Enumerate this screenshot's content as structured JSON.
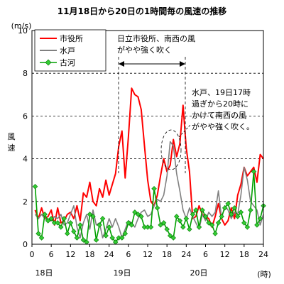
{
  "chart_data": {
    "type": "line",
    "title": "11月18日から20日の1時間毎の風速の推移",
    "ylabel_unit": "(m/s)",
    "ylabel": [
      "風",
      "速"
    ],
    "xlabel_unit": "(時)",
    "ylim": [
      0,
      10
    ],
    "yticks": [
      0,
      2,
      4,
      6,
      8,
      10
    ],
    "x_tick_labels": [
      "0",
      "6",
      "12",
      "18",
      "24",
      "6",
      "12",
      "18",
      "24",
      "6",
      "12",
      "18",
      "24"
    ],
    "day_labels": [
      "18日",
      "19日",
      "20日"
    ],
    "legend_position": "top-left",
    "grid": "dashed horizontal",
    "x_hours": [
      1,
      2,
      3,
      4,
      5,
      6,
      7,
      8,
      9,
      10,
      11,
      12,
      13,
      14,
      15,
      16,
      17,
      18,
      19,
      20,
      21,
      22,
      23,
      24,
      25,
      26,
      27,
      28,
      29,
      30,
      31,
      32,
      33,
      34,
      35,
      36,
      37,
      38,
      39,
      40,
      41,
      42,
      43,
      44,
      45,
      46,
      47,
      48,
      49,
      50,
      51,
      52,
      53,
      54,
      55,
      56,
      57,
      58,
      59,
      60,
      61,
      62,
      63,
      64,
      65,
      66,
      67,
      68,
      69,
      70,
      71,
      72
    ],
    "series": [
      {
        "name": "市役所",
        "color": "#ff0000",
        "marker": "none",
        "values": [
          1.6,
          1.2,
          1.7,
          1.2,
          1.3,
          1.6,
          0.9,
          1.7,
          1.0,
          1.1,
          1.4,
          1.5,
          1.2,
          1.8,
          1.1,
          2.4,
          2.2,
          2.9,
          2.0,
          1.8,
          2.6,
          2.2,
          3.0,
          2.3,
          2.8,
          3.3,
          4.6,
          5.3,
          3.1,
          5.0,
          7.3,
          7.0,
          6.9,
          6.3,
          4.6,
          3.0,
          2.0,
          1.8,
          2.3,
          3.2,
          4.0,
          3.4,
          3.7,
          4.9,
          4.1,
          4.7,
          6.5,
          4.5,
          3.4,
          1.2,
          1.3,
          1.8,
          1.4,
          1.3,
          1.2,
          0.8,
          1.3,
          1.9,
          1.2,
          0.9,
          1.1,
          1.7,
          1.2,
          2.3,
          2.8,
          3.6,
          3.2,
          3.4,
          3.6,
          2.9,
          4.2,
          4.0
        ]
      },
      {
        "name": "水戸",
        "color": "#808080",
        "marker": "none",
        "values": [
          1.4,
          1.2,
          1.4,
          1.2,
          1.1,
          1.1,
          1.3,
          1.2,
          1.4,
          0.9,
          1.0,
          1.4,
          1.8,
          0.8,
          0.3,
          1.0,
          1.4,
          0.7,
          1.6,
          0.9,
          1.0,
          0.3,
          0.7,
          1.2,
          0.8,
          1.2,
          0.8,
          0.3,
          0.7,
          1.1,
          1.0,
          0.8,
          1.2,
          1.5,
          1.6,
          1.3,
          1.4,
          1.8,
          2.1,
          2.0,
          2.3,
          3.2,
          4.8,
          4.6,
          3.3,
          2.5,
          1.6,
          1.2,
          1.7,
          1.3,
          1.0,
          0.7,
          1.4,
          1.1,
          1.5,
          1.3,
          1.5,
          2.5,
          1.2,
          1.8,
          1.6,
          1.2,
          1.5,
          1.4,
          2.3,
          3.6,
          3.0,
          2.0,
          1.8,
          1.6,
          0.9,
          1.4
        ]
      },
      {
        "name": "古河",
        "color": "#00a000",
        "marker": "diamond",
        "values": [
          2.7,
          0.5,
          0.3,
          1.4,
          1.1,
          1.2,
          1.0,
          1.0,
          0.8,
          1.2,
          0.5,
          1.0,
          0.6,
          0.3,
          0.9,
          0.2,
          0.1,
          1.4,
          1.3,
          0.2,
          0.9,
          1.2,
          0.4,
          0.8,
          0.3,
          0.1,
          0.3,
          0.3,
          0.5,
          1.0,
          0.9,
          1.5,
          1.4,
          1.3,
          0.8,
          0.8,
          0.8,
          2.6,
          1.7,
          0.9,
          1.0,
          0.7,
          0.4,
          0.3,
          1.3,
          1.1,
          0.8,
          1.2,
          0.7,
          1.4,
          1.6,
          0.8,
          1.6,
          1.3,
          1.0,
          0.9,
          0.5,
          1.0,
          1.3,
          1.7,
          1.9,
          1.4,
          1.7,
          1.3,
          1.5,
          1.0,
          0.8,
          1.6,
          3.4,
          0.9,
          1.2,
          1.8
        ]
      }
    ],
    "annotations": {
      "arrow_text": [
        "日立市役所、南西の風",
        "がやや強く吹く"
      ],
      "arrow_range_hours": [
        25,
        48
      ],
      "callout_text": [
        "水戸、19日17時",
        "過ぎから20時に",
        "かけて南西の風",
        "がやや強く吹く。"
      ]
    }
  }
}
